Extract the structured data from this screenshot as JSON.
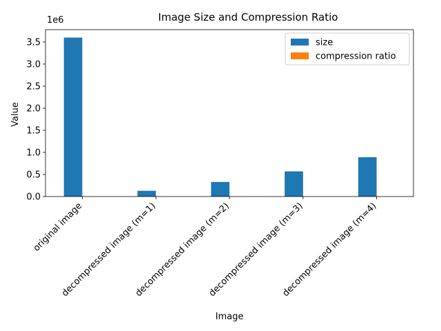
{
  "chart_data": {
    "type": "bar",
    "title": "Image Size and Compression Ratio",
    "xlabel": "Image",
    "ylabel": "Value",
    "y_offset_text": "1e6",
    "ylim": [
      0,
      3780000
    ],
    "yticks": [
      0,
      500000,
      1000000,
      1500000,
      2000000,
      2500000,
      3000000,
      3500000
    ],
    "ytick_labels": [
      "0.0",
      "0.5",
      "1.0",
      "1.5",
      "2.0",
      "2.5",
      "3.0",
      "3.5"
    ],
    "categories": [
      "original image",
      "decompressed image (m=1)",
      "decompressed image (m=2)",
      "decompressed image (m=3)",
      "decompressed image (m=4)"
    ],
    "series": [
      {
        "name": "size",
        "color": "#1f77b4",
        "values": [
          3600000,
          130000,
          330000,
          570000,
          890000
        ]
      },
      {
        "name": "compression ratio",
        "color": "#ff7f0e",
        "values": [
          1,
          27,
          11,
          6,
          4
        ]
      }
    ],
    "legend_position": "top-right",
    "grid": false
  }
}
